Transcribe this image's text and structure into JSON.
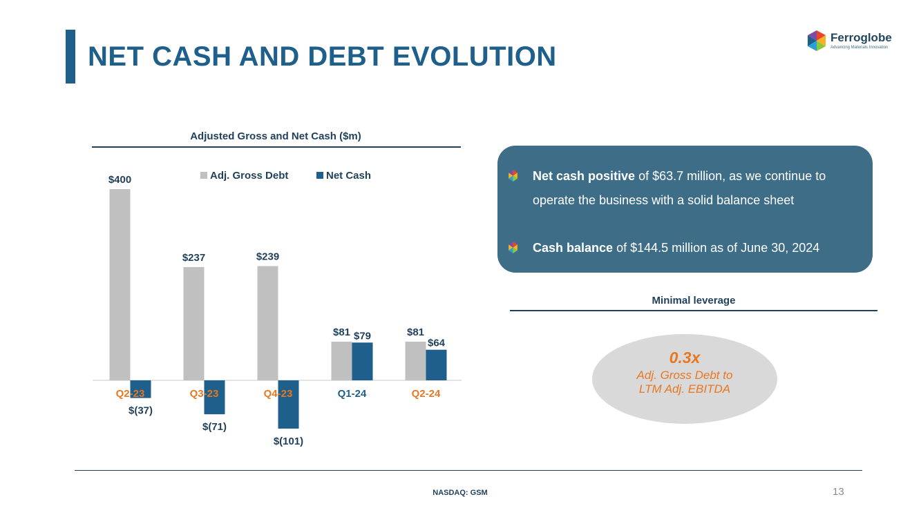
{
  "slide": {
    "title": "NET CASH AND DEBT EVOLUTION",
    "logo_name": "Ferroglobe",
    "logo_tagline": "Advancing Materials Innovation",
    "footer": "NASDAQ: GSM",
    "page_number": "13",
    "accent_color": "#1f5f8b",
    "orange_color": "#e87722"
  },
  "info": {
    "bullet1_bold": "Net cash positive",
    "bullet1_rest": " of $63.7 million, as we continue to operate the business with a solid balance sheet",
    "bullet2_bold": "Cash balance",
    "bullet2_rest": " of $144.5 million as of June 30, 2024"
  },
  "leverage": {
    "title": "Minimal leverage",
    "value": "0.3x",
    "description": "Adj. Gross Debt to LTM Adj. EBITDA"
  },
  "chart_data": {
    "type": "bar",
    "title": "Adjusted Gross and Net Cash ($m)",
    "categories": [
      "Q2-23",
      "Q3-23",
      "Q4-23",
      "Q1-24",
      "Q2-24"
    ],
    "category_colors": [
      "#e87722",
      "#e87722",
      "#e87722",
      "#1f5f8b",
      "#e87722"
    ],
    "series": [
      {
        "name": "Adj. Gross Debt",
        "color": "#c0c0c0",
        "values": [
          400,
          237,
          239,
          81,
          81
        ],
        "labels": [
          "$400",
          "$237",
          "$239",
          "$81",
          "$81"
        ]
      },
      {
        "name": "Net Cash",
        "color": "#1f5f8b",
        "values": [
          -37,
          -71,
          -101,
          79,
          64
        ],
        "labels": [
          "$(37)",
          "$(71)",
          "$(101)",
          "$79",
          "$64"
        ]
      }
    ],
    "ylim": [
      -150,
      420
    ],
    "legend": "top",
    "xlabel": "",
    "ylabel": ""
  }
}
